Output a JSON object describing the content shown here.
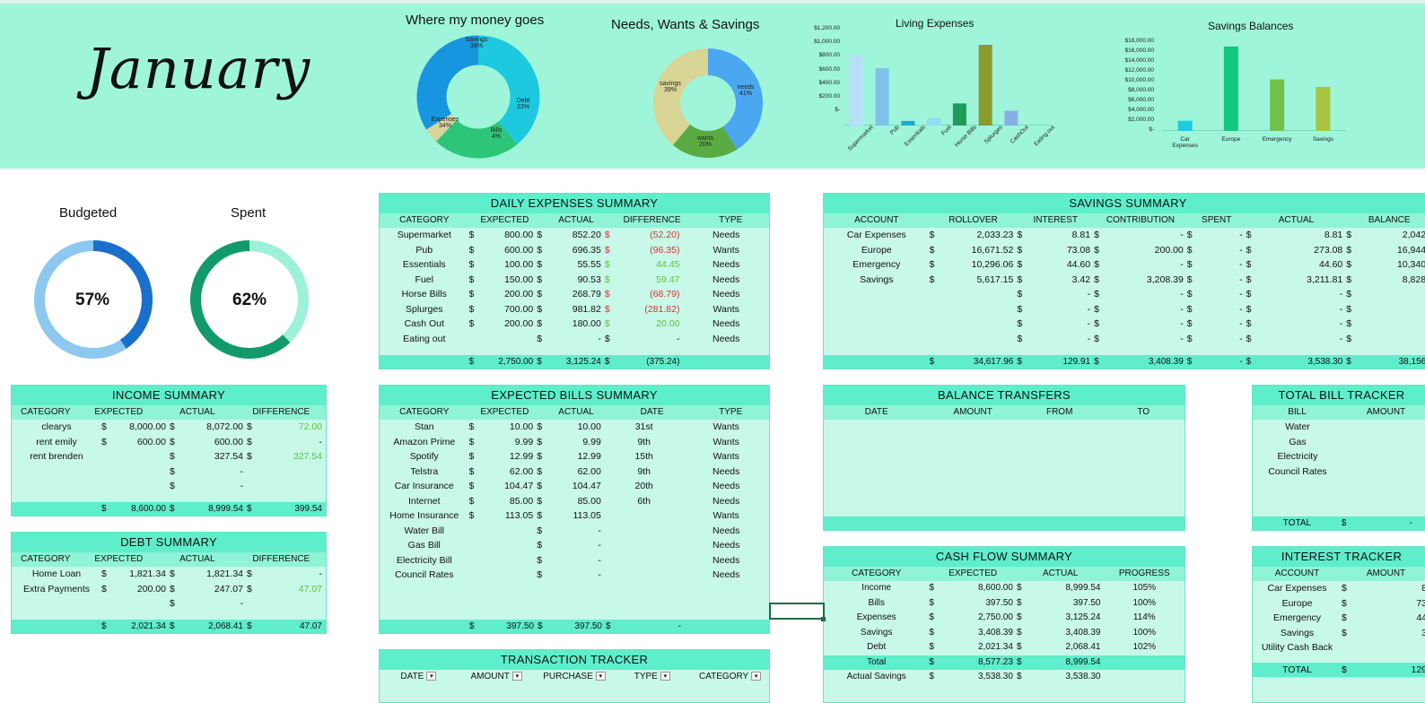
{
  "month": "January",
  "colors": {
    "band": "#9ef5da",
    "panel": "#c8f8e8",
    "title": "#5eeecb",
    "red": "#e03030",
    "green": "#62c23c"
  },
  "charts": {
    "money_title": "Where my money goes",
    "money_labels": {
      "savings": "Savings",
      "savings_pct": "39%",
      "debt": "Debt",
      "debt_pct": "23%",
      "bills": "Bills",
      "bills_pct": "4%",
      "expenses": "Expenses",
      "expenses_pct": "34%"
    },
    "nws_title": "Needs, Wants & Savings",
    "nws_labels": {
      "savings": "savings",
      "savings_pct": "39%",
      "needs": "needs",
      "needs_pct": "41%",
      "wants": "wants",
      "wants_pct": "20%"
    },
    "living_title": "Living Expenses",
    "living_ticks": [
      "$1,200.00",
      "$1,000.00",
      "$800.00",
      "$600.00",
      "$400.00",
      "$200.00",
      "$-"
    ],
    "living_cats": [
      "Supermarket",
      "Pub",
      "Essentials",
      "Fuel",
      "Horse Bills",
      "Splurges",
      "CashOut",
      "Eating out"
    ],
    "savings_title": "Savings Balances",
    "savings_ticks": [
      "$18,000.00",
      "$16,000.00",
      "$14,000.00",
      "$12,000.00",
      "$10,000.00",
      "$8,000.00",
      "$6,000.00",
      "$4,000.00",
      "$2,000.00",
      "$-"
    ],
    "savings_cats": [
      "Car Expenses",
      "Europe",
      "Emergency",
      "Savings"
    ]
  },
  "chart_data": [
    {
      "type": "pie",
      "title": "Where my money goes",
      "categories": [
        "Savings",
        "Debt",
        "Bills",
        "Expenses"
      ],
      "values": [
        39,
        23,
        4,
        34
      ]
    },
    {
      "type": "pie",
      "title": "Needs, Wants & Savings",
      "categories": [
        "needs",
        "wants",
        "savings"
      ],
      "values": [
        41,
        20,
        39
      ]
    },
    {
      "type": "bar",
      "title": "Living Expenses",
      "categories": [
        "Supermarket",
        "Pub",
        "Essentials",
        "Fuel",
        "Horse Bills",
        "Splurges",
        "CashOut",
        "Eating out"
      ],
      "values": [
        852.2,
        696.35,
        55.55,
        90.53,
        268.79,
        981.82,
        180.0,
        0
      ],
      "ylim": [
        0,
        1200
      ]
    },
    {
      "type": "bar",
      "title": "Savings Balances",
      "categories": [
        "Car Expenses",
        "Europe",
        "Emergency",
        "Savings"
      ],
      "values": [
        2042,
        16944,
        10340,
        8828
      ],
      "ylim": [
        0,
        18000
      ]
    }
  ],
  "budget": {
    "budgeted_label": "Budgeted",
    "budgeted_pct": "57%",
    "spent_label": "Spent",
    "spent_pct": "62%"
  },
  "income": {
    "title": "INCOME SUMMARY",
    "headers": [
      "CATEGORY",
      "EXPECTED",
      "ACTUAL",
      "DIFFERENCE"
    ],
    "rows": [
      [
        "clearys",
        "$",
        "8,000.00",
        "$",
        "8,072.00",
        "$",
        "72.00"
      ],
      [
        "rent emily",
        "$",
        "600.00",
        "$",
        "600.00",
        "$",
        "-"
      ],
      [
        "rent brenden",
        "",
        "",
        "$",
        "327.54",
        "$",
        "327.54"
      ],
      [
        "",
        "",
        "",
        "$",
        "-",
        "",
        ""
      ],
      [
        "",
        "",
        "",
        "$",
        "-",
        "",
        ""
      ]
    ],
    "total": [
      "",
      "$",
      "8,600.00",
      "$",
      "8,999.54",
      "$",
      "399.54"
    ]
  },
  "debt": {
    "title": "DEBT SUMMARY",
    "headers": [
      "CATEGORY",
      "EXPECTED",
      "ACTUAL",
      "DIFFERENCE"
    ],
    "rows": [
      [
        "Home Loan",
        "$",
        "1,821.34",
        "$",
        "1,821.34",
        "$",
        "-"
      ],
      [
        "Extra Payments",
        "$",
        "200.00",
        "$",
        "247.07",
        "$",
        "47.07"
      ],
      [
        "",
        "",
        "",
        "$",
        "-",
        "",
        ""
      ]
    ],
    "total": [
      "",
      "$",
      "2,021.34",
      "$",
      "2,068.41",
      "$",
      "47.07"
    ]
  },
  "daily": {
    "title": "DAILY EXPENSES SUMMARY",
    "headers": [
      "CATEGORY",
      "EXPECTED",
      "ACTUAL",
      "DIFFERENCE",
      "TYPE"
    ],
    "rows": [
      [
        "Supermarket",
        "$",
        "800.00",
        "$",
        "852.20",
        "$",
        "(52.20)",
        "Needs"
      ],
      [
        "Pub",
        "$",
        "600.00",
        "$",
        "696.35",
        "$",
        "(96.35)",
        "Wants"
      ],
      [
        "Essentials",
        "$",
        "100.00",
        "$",
        "55.55",
        "$",
        "44.45",
        "Needs"
      ],
      [
        "Fuel",
        "$",
        "150.00",
        "$",
        "90.53",
        "$",
        "59.47",
        "Needs"
      ],
      [
        "Horse Bills",
        "$",
        "200.00",
        "$",
        "268.79",
        "$",
        "(68.79)",
        "Needs"
      ],
      [
        "Splurges",
        "$",
        "700.00",
        "$",
        "981.82",
        "$",
        "(281.82)",
        "Wants"
      ],
      [
        "Cash Out",
        "$",
        "200.00",
        "$",
        "180.00",
        "$",
        "20.00",
        "Needs"
      ],
      [
        "Eating out",
        "",
        "",
        "$",
        "-",
        "$",
        "-",
        "Needs"
      ]
    ],
    "total": [
      "",
      "$",
      "2,750.00",
      "$",
      "3,125.24",
      "$",
      "(375.24)",
      ""
    ]
  },
  "bills": {
    "title": "EXPECTED BILLS SUMMARY",
    "headers": [
      "CATEGORY",
      "EXPECTED",
      "ACTUAL",
      "DATE",
      "TYPE"
    ],
    "rows": [
      [
        "Stan",
        "$",
        "10.00",
        "$",
        "10.00",
        "31st",
        "Wants"
      ],
      [
        "Amazon Prime",
        "$",
        "9.99",
        "$",
        "9.99",
        "9th",
        "Wants"
      ],
      [
        "Spotify",
        "$",
        "12.99",
        "$",
        "12.99",
        "15th",
        "Wants"
      ],
      [
        "Telstra",
        "$",
        "62.00",
        "$",
        "62.00",
        "9th",
        "Needs"
      ],
      [
        "Car Insurance",
        "$",
        "104.47",
        "$",
        "104.47",
        "20th",
        "Needs"
      ],
      [
        "Internet",
        "$",
        "85.00",
        "$",
        "85.00",
        "6th",
        "Needs"
      ],
      [
        "Home Insurance",
        "$",
        "113.05",
        "$",
        "113.05",
        "",
        "Wants"
      ],
      [
        "Water Bill",
        "",
        "",
        "$",
        "-",
        "",
        "Needs"
      ],
      [
        "Gas Bill",
        "",
        "",
        "$",
        "-",
        "",
        "Needs"
      ],
      [
        "Electricity Bill",
        "",
        "",
        "$",
        "-",
        "",
        "Needs"
      ],
      [
        "Council Rates",
        "",
        "",
        "$",
        "-",
        "",
        "Needs"
      ]
    ],
    "total": [
      "",
      "$",
      "397.50",
      "$",
      "397.50",
      "$",
      "-"
    ]
  },
  "transactions": {
    "title": "TRANSACTION TRACKER",
    "headers": [
      "DATE",
      "AMOUNT",
      "PURCHASE",
      "TYPE",
      "CATEGORY"
    ]
  },
  "savings": {
    "title": "SAVINGS SUMMARY",
    "headers": [
      "ACCOUNT",
      "ROLLOVER",
      "INTEREST",
      "CONTRIBUTION",
      "SPENT",
      "ACTUAL",
      "BALANCE"
    ],
    "rows": [
      [
        "Car Expenses",
        "$",
        "2,033.23",
        "$",
        "8.81",
        "$",
        "-",
        "$",
        "-",
        "$",
        "8.81",
        "$",
        "2,042."
      ],
      [
        "Europe",
        "$",
        "16,671.52",
        "$",
        "73.08",
        "$",
        "200.00",
        "$",
        "-",
        "$",
        "273.08",
        "$",
        "16,944."
      ],
      [
        "Emergency",
        "$",
        "10,296.06",
        "$",
        "44.60",
        "$",
        "-",
        "$",
        "-",
        "$",
        "44.60",
        "$",
        "10,340."
      ],
      [
        "Savings",
        "$",
        "5,617.15",
        "$",
        "3.42",
        "$",
        "3,208.39",
        "$",
        "-",
        "$",
        "3,211.81",
        "$",
        "8,828."
      ],
      [
        "",
        "",
        "",
        "$",
        "-",
        "$",
        "-",
        "$",
        "-",
        "$",
        "-",
        "$",
        "-"
      ],
      [
        "",
        "",
        "",
        "$",
        "-",
        "$",
        "-",
        "$",
        "-",
        "$",
        "-",
        "$",
        "-"
      ],
      [
        "",
        "",
        "",
        "$",
        "-",
        "$",
        "-",
        "$",
        "-",
        "$",
        "-",
        "$",
        "-"
      ],
      [
        "",
        "",
        "",
        "$",
        "-",
        "$",
        "-",
        "$",
        "-",
        "$",
        "-",
        "$",
        "-"
      ]
    ],
    "total": [
      "",
      "$",
      "34,617.96",
      "$",
      "129.91",
      "$",
      "3,408.39",
      "$",
      "-",
      "$",
      "3,538.30",
      "$",
      "38,156."
    ]
  },
  "transfers": {
    "title": "BALANCE TRANSFERS",
    "headers": [
      "DATE",
      "AMOUNT",
      "FROM",
      "TO"
    ]
  },
  "cashflow": {
    "title": "CASH FLOW SUMMARY",
    "headers": [
      "CATEGORY",
      "EXPECTED",
      "ACTUAL",
      "PROGRESS"
    ],
    "rows": [
      [
        "Income",
        "$",
        "8,600.00",
        "$",
        "8,999.54",
        "105%"
      ],
      [
        "Bills",
        "$",
        "397.50",
        "$",
        "397.50",
        "100%"
      ],
      [
        "Expenses",
        "$",
        "2,750.00",
        "$",
        "3,125.24",
        "114%"
      ],
      [
        "Savings",
        "$",
        "3,408.39",
        "$",
        "3,408.39",
        "100%"
      ],
      [
        "Debt",
        "$",
        "2,021.34",
        "$",
        "2,068.41",
        "102%"
      ],
      [
        "Total",
        "$",
        "8,577.23",
        "$",
        "8,999.54",
        ""
      ],
      [
        "Actual Savings",
        "$",
        "3,538.30",
        "$",
        "3,538.30",
        ""
      ]
    ]
  },
  "billtracker": {
    "title": "TOTAL BILL TRACKER",
    "headers": [
      "BILL",
      "AMOUNT"
    ],
    "rows": [
      "Water",
      "Gas",
      "Electricity",
      "Council Rates"
    ],
    "total_label": "TOTAL",
    "total_cur": "$",
    "total_val": "-"
  },
  "interest": {
    "title": "INTEREST TRACKER",
    "headers": [
      "ACCOUNT",
      "AMOUNT"
    ],
    "rows": [
      [
        "Car Expenses",
        "$",
        "8"
      ],
      [
        "Europe",
        "$",
        "73"
      ],
      [
        "Emergency",
        "$",
        "44"
      ],
      [
        "Savings",
        "$",
        "3"
      ],
      [
        "Utility Cash Back",
        "",
        ""
      ]
    ],
    "total": [
      "TOTAL",
      "$",
      "129"
    ]
  }
}
